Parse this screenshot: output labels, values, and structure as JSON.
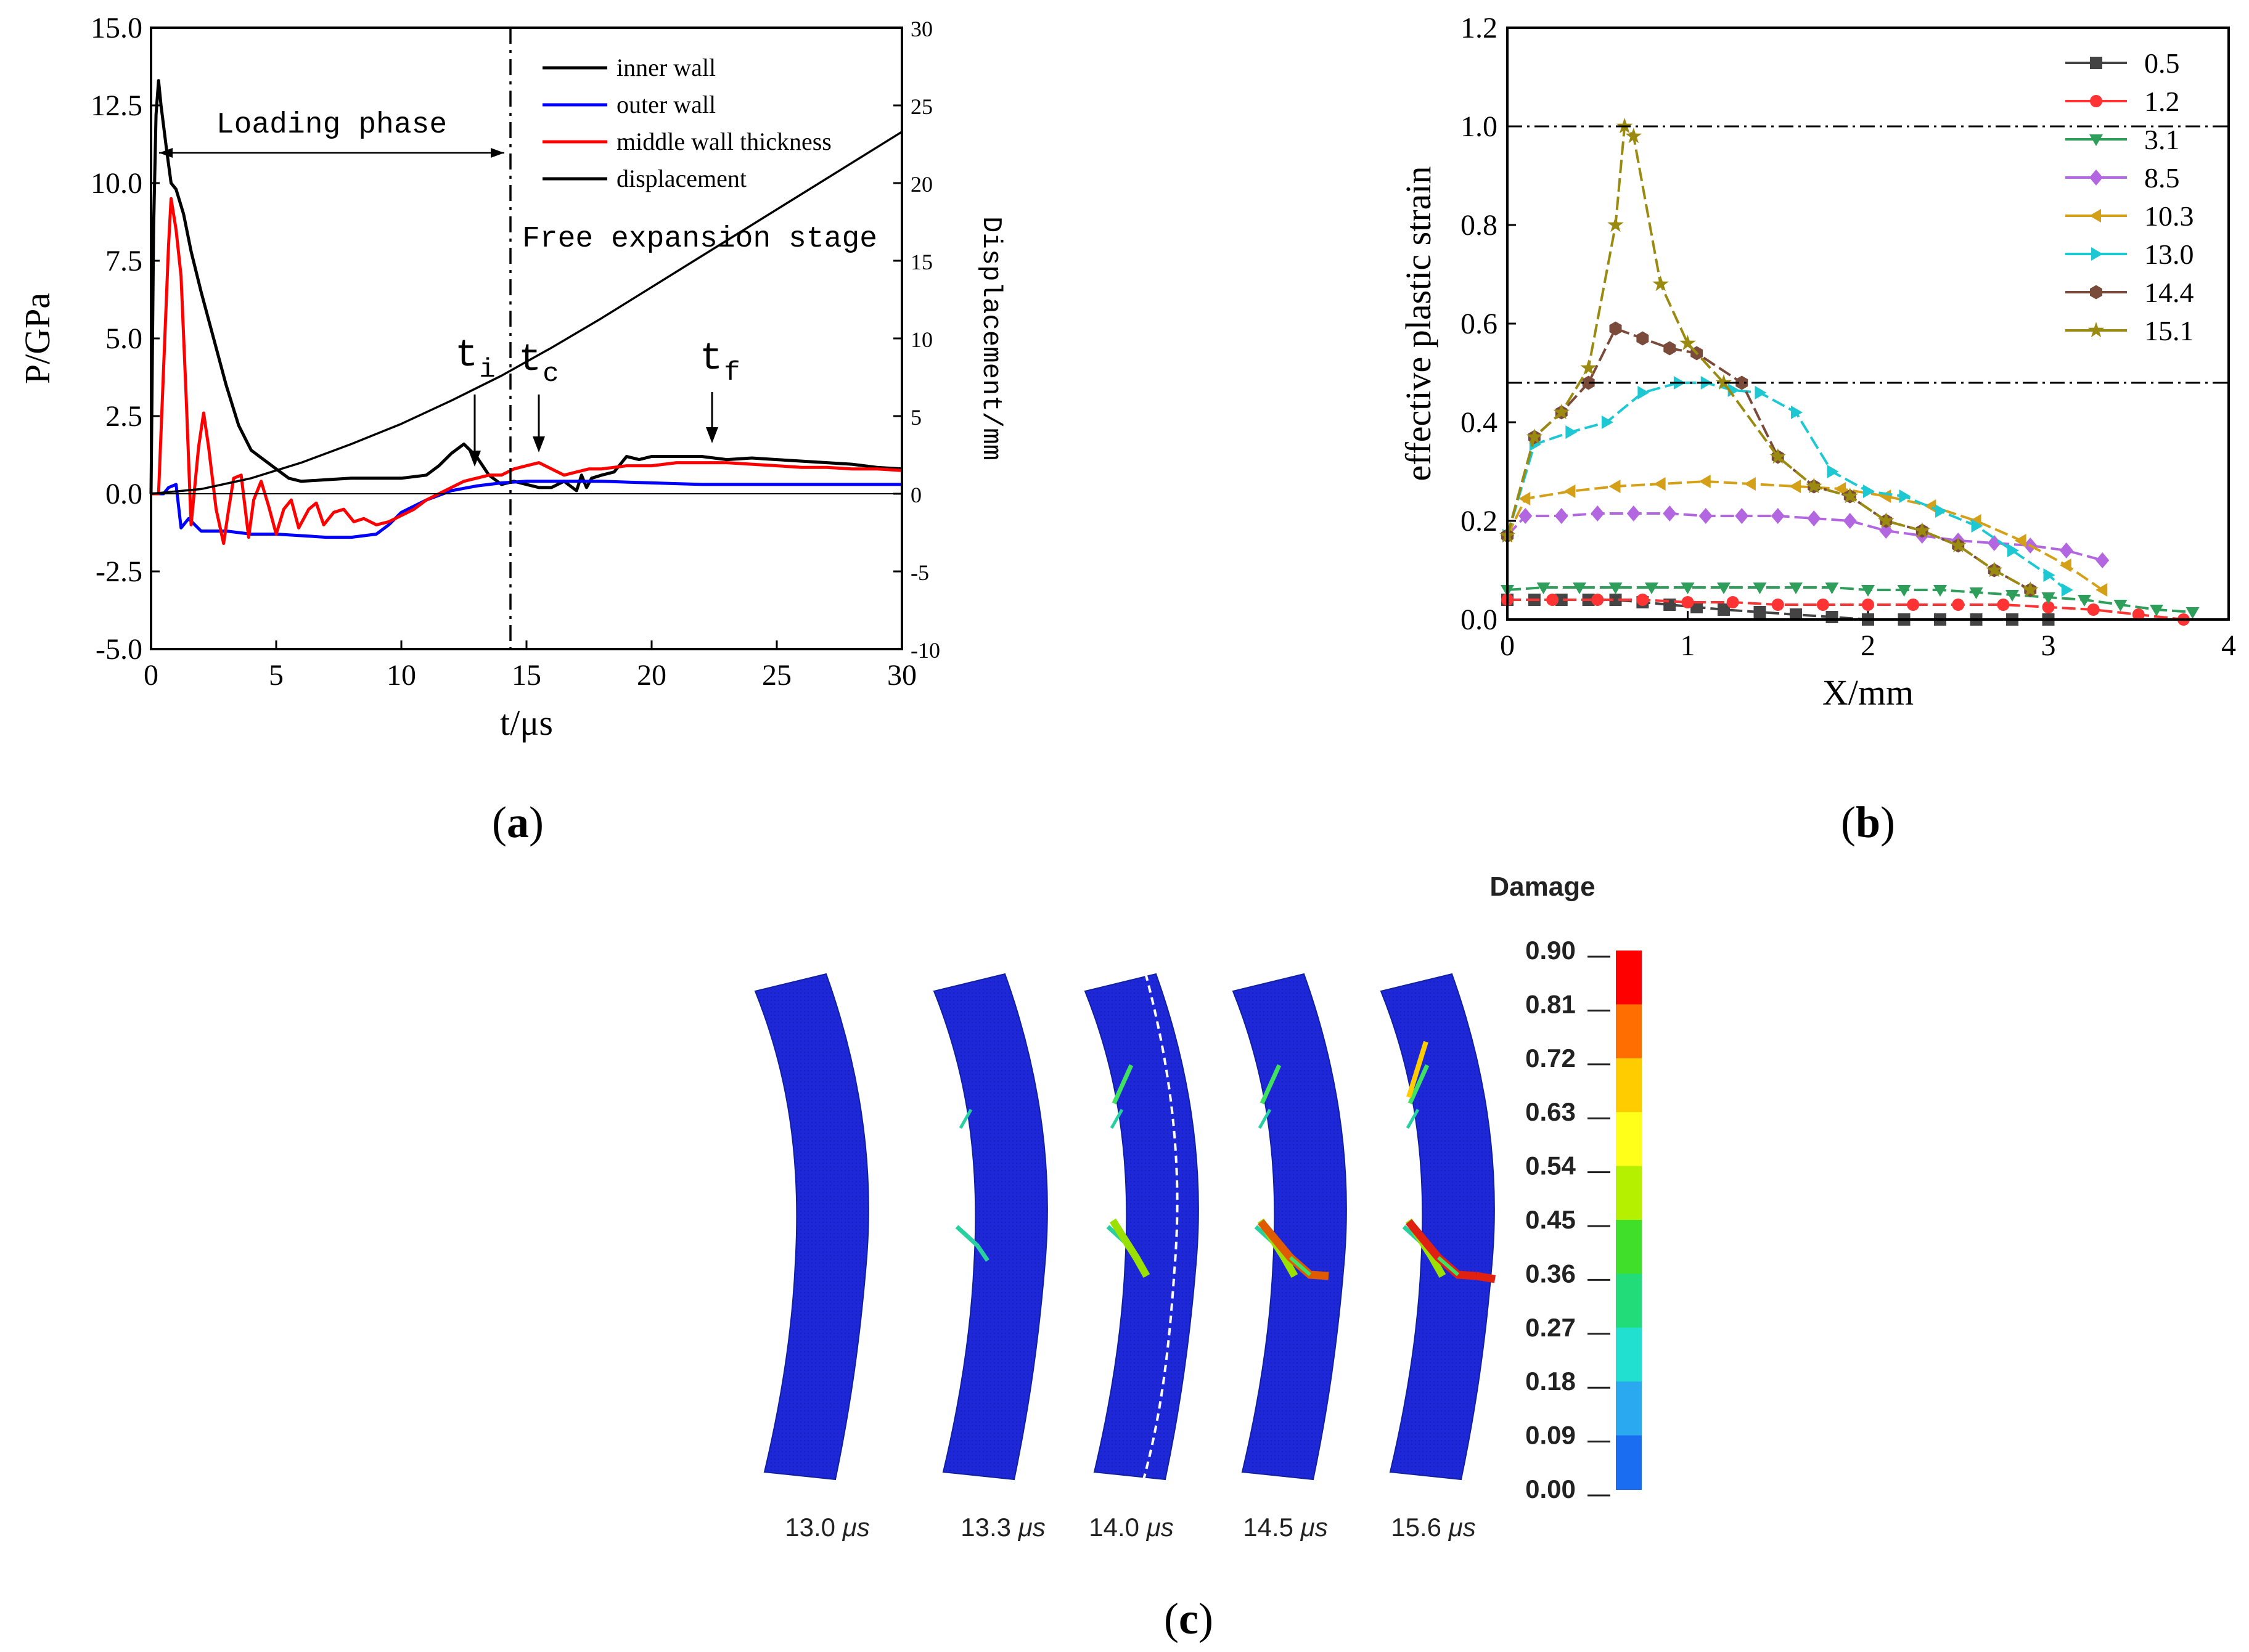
{
  "panel_labels": {
    "a": "a",
    "b": "b",
    "c": "c"
  },
  "chart_data": [
    {
      "id": "a",
      "type": "line",
      "xlabel": "t/μs",
      "ylabel": "P/GPa",
      "y2label": "Displacement/mm",
      "xlim": [
        0,
        30
      ],
      "ylim": [
        -5,
        15
      ],
      "y2lim": [
        -10,
        30
      ],
      "xticks": [
        "0",
        "5",
        "10",
        "15",
        "20",
        "25",
        "30"
      ],
      "yticks": [
        "-5.0",
        "-2.5",
        "0.0",
        "2.5",
        "5.0",
        "7.5",
        "10.0",
        "12.5",
        "15.0"
      ],
      "y2ticks": [
        "-10",
        "-5",
        "0",
        "5",
        "10",
        "15",
        "20",
        "25",
        "30"
      ],
      "legend": {
        "position": "top-right",
        "entries": [
          "inner wall",
          "outer wall",
          "middle wall thickness",
          "displacement"
        ]
      },
      "colors": {
        "inner wall": "#000000",
        "outer wall": "#0000ff",
        "middle wall thickness": "#ff0000",
        "displacement": "#000000"
      },
      "annotations": {
        "loading": "Loading phase",
        "free": "Free expansion stage",
        "ti": "t",
        "ti_sub": "i",
        "tc": "t",
        "tc_sub": "c",
        "tf": "t",
        "tf_sub": "f"
      },
      "phase_boundary_x": 14.4,
      "series": [
        {
          "name": "inner wall",
          "axis": "left",
          "x": [
            0,
            0.1,
            0.2,
            0.3,
            0.4,
            0.6,
            0.8,
            1.0,
            1.3,
            1.6,
            2.0,
            2.5,
            3.0,
            3.5,
            4.0,
            4.5,
            5.0,
            5.5,
            6.0,
            7.0,
            8.0,
            9.0,
            10.0,
            11.0,
            11.5,
            12.0,
            12.5,
            13.0,
            13.5,
            14.0,
            14.5,
            15.0,
            15.5,
            16.0,
            16.5,
            17.0,
            17.2,
            17.4,
            17.6,
            18.0,
            18.5,
            19.0,
            19.5,
            20.0,
            21.0,
            22.0,
            23.0,
            24.0,
            25.0,
            26.0,
            27.0,
            28.0,
            29.0,
            30.0
          ],
          "y": [
            0,
            8.5,
            12.2,
            13.3,
            12.5,
            11.2,
            10.0,
            9.8,
            9.0,
            7.8,
            6.5,
            5.0,
            3.5,
            2.2,
            1.4,
            1.1,
            0.8,
            0.5,
            0.4,
            0.45,
            0.5,
            0.5,
            0.5,
            0.6,
            0.9,
            1.3,
            1.6,
            1.2,
            0.6,
            0.3,
            0.4,
            0.3,
            0.2,
            0.2,
            0.4,
            0.1,
            0.6,
            0.2,
            0.5,
            0.6,
            0.7,
            1.2,
            1.1,
            1.2,
            1.2,
            1.2,
            1.1,
            1.15,
            1.1,
            1.05,
            1.0,
            0.95,
            0.85,
            0.8
          ]
        },
        {
          "name": "outer wall",
          "axis": "left",
          "x": [
            0,
            0.5,
            0.7,
            1.0,
            1.2,
            1.5,
            2.0,
            3.0,
            4.0,
            5.0,
            6.0,
            7.0,
            8.0,
            9.0,
            9.5,
            10.0,
            11.0,
            12.0,
            13.0,
            14.0,
            15.0,
            16.0,
            17.0,
            18.0,
            20.0,
            22.0,
            24.0,
            26.0,
            28.0,
            30.0
          ],
          "y": [
            0,
            0,
            0.2,
            0.3,
            -1.1,
            -0.8,
            -1.2,
            -1.2,
            -1.3,
            -1.3,
            -1.35,
            -1.4,
            -1.4,
            -1.3,
            -1.0,
            -0.6,
            -0.2,
            0.1,
            0.25,
            0.35,
            0.4,
            0.4,
            0.4,
            0.4,
            0.35,
            0.3,
            0.3,
            0.3,
            0.3,
            0.3
          ]
        },
        {
          "name": "middle wall thickness",
          "axis": "left",
          "x": [
            0,
            0.3,
            0.5,
            0.7,
            0.8,
            1.0,
            1.2,
            1.4,
            1.6,
            1.9,
            2.1,
            2.3,
            2.6,
            2.9,
            3.1,
            3.3,
            3.6,
            3.9,
            4.1,
            4.4,
            4.7,
            5.0,
            5.3,
            5.6,
            5.9,
            6.3,
            6.6,
            6.9,
            7.3,
            7.7,
            8.1,
            8.5,
            9.0,
            9.5,
            10.0,
            10.5,
            11.0,
            11.5,
            12.0,
            12.5,
            13.0,
            13.5,
            14.0,
            14.5,
            15.0,
            15.5,
            16.0,
            16.5,
            17.0,
            17.5,
            18.0,
            19.0,
            20.0,
            21.0,
            22.0,
            23.0,
            24.0,
            25.0,
            26.0,
            27.0,
            28.0,
            29.0,
            30.0
          ],
          "y": [
            0,
            0,
            4.0,
            8.0,
            9.5,
            8.5,
            7.0,
            3.2,
            -1.0,
            1.5,
            2.6,
            1.5,
            -0.5,
            -1.6,
            -0.5,
            0.5,
            0.6,
            -1.4,
            -0.2,
            0.4,
            -0.4,
            -1.3,
            -0.5,
            -0.2,
            -1.1,
            -0.5,
            -0.3,
            -1.0,
            -0.6,
            -0.5,
            -0.9,
            -0.8,
            -1.0,
            -0.9,
            -0.7,
            -0.5,
            -0.2,
            0.0,
            0.2,
            0.4,
            0.5,
            0.6,
            0.6,
            0.8,
            0.9,
            1.0,
            0.8,
            0.6,
            0.7,
            0.8,
            0.8,
            0.9,
            0.9,
            1.0,
            1.0,
            1.0,
            0.95,
            0.9,
            0.85,
            0.85,
            0.8,
            0.8,
            0.75
          ]
        },
        {
          "name": "displacement",
          "axis": "right",
          "x": [
            0,
            2,
            4,
            6,
            8,
            10,
            12,
            14,
            16,
            18,
            20,
            22,
            24,
            26,
            28,
            30
          ],
          "y": [
            0,
            0.3,
            1.0,
            2.0,
            3.2,
            4.5,
            6.0,
            7.6,
            9.4,
            11.3,
            13.3,
            15.3,
            17.3,
            19.3,
            21.3,
            23.3
          ]
        }
      ]
    },
    {
      "id": "b",
      "type": "line",
      "xlabel": "X/mm",
      "ylabel": "effective plastic strain",
      "xlim": [
        0,
        4
      ],
      "ylim": [
        0,
        1.2
      ],
      "xticks": [
        "0",
        "1",
        "2",
        "3",
        "4"
      ],
      "yticks": [
        "0.0",
        "0.2",
        "0.4",
        "0.6",
        "0.8",
        "1.0",
        "1.2"
      ],
      "ref_lines": [
        1.0,
        0.48
      ],
      "legend": {
        "position": "top-right"
      },
      "series": [
        {
          "name": "0.5",
          "color": "#444444",
          "marker": "square",
          "x": [
            0,
            0.15,
            0.3,
            0.45,
            0.6,
            0.75,
            0.9,
            1.05,
            1.2,
            1.4,
            1.6,
            1.8,
            2.0,
            2.2,
            2.4,
            2.6,
            2.8,
            3.0
          ],
          "y": [
            0.04,
            0.04,
            0.04,
            0.04,
            0.04,
            0.035,
            0.03,
            0.025,
            0.02,
            0.015,
            0.01,
            0.005,
            0.0,
            0.0,
            0.0,
            0.0,
            0.0,
            0.0
          ]
        },
        {
          "name": "1.2",
          "color": "#ff3333",
          "marker": "circle",
          "x": [
            0,
            0.25,
            0.5,
            0.75,
            1.0,
            1.25,
            1.5,
            1.75,
            2.0,
            2.25,
            2.5,
            2.75,
            3.0,
            3.25,
            3.5,
            3.75
          ],
          "y": [
            0.04,
            0.04,
            0.04,
            0.04,
            0.035,
            0.035,
            0.03,
            0.03,
            0.03,
            0.03,
            0.03,
            0.03,
            0.025,
            0.02,
            0.01,
            0.0
          ]
        },
        {
          "name": "3.1",
          "color": "#2e9e5b",
          "marker": "triangle-down",
          "x": [
            0,
            0.2,
            0.4,
            0.6,
            0.8,
            1.0,
            1.2,
            1.4,
            1.6,
            1.8,
            2.0,
            2.2,
            2.4,
            2.6,
            2.8,
            3.0,
            3.2,
            3.4,
            3.6,
            3.8
          ],
          "y": [
            0.06,
            0.065,
            0.065,
            0.065,
            0.065,
            0.065,
            0.065,
            0.065,
            0.065,
            0.065,
            0.06,
            0.06,
            0.06,
            0.055,
            0.05,
            0.045,
            0.04,
            0.03,
            0.02,
            0.015
          ]
        },
        {
          "name": "8.5",
          "color": "#b266e0",
          "marker": "diamond",
          "x": [
            0,
            0.1,
            0.3,
            0.5,
            0.7,
            0.9,
            1.1,
            1.3,
            1.5,
            1.7,
            1.9,
            2.1,
            2.3,
            2.5,
            2.7,
            2.9,
            3.1,
            3.3
          ],
          "y": [
            0.17,
            0.21,
            0.21,
            0.215,
            0.215,
            0.215,
            0.21,
            0.21,
            0.21,
            0.205,
            0.2,
            0.18,
            0.17,
            0.16,
            0.155,
            0.15,
            0.14,
            0.12
          ]
        },
        {
          "name": "10.3",
          "color": "#d4a017",
          "marker": "triangle-left",
          "x": [
            0,
            0.1,
            0.35,
            0.6,
            0.85,
            1.1,
            1.35,
            1.6,
            1.85,
            2.1,
            2.35,
            2.6,
            2.85,
            3.1,
            3.3
          ],
          "y": [
            0.17,
            0.245,
            0.26,
            0.27,
            0.275,
            0.28,
            0.275,
            0.27,
            0.265,
            0.25,
            0.23,
            0.2,
            0.16,
            0.11,
            0.06
          ]
        },
        {
          "name": "13.0",
          "color": "#1ec8d2",
          "marker": "triangle-right",
          "x": [
            0,
            0.15,
            0.35,
            0.55,
            0.75,
            0.95,
            1.1,
            1.25,
            1.4,
            1.6,
            1.8,
            2.0,
            2.2,
            2.4,
            2.6,
            2.8,
            3.0,
            3.1
          ],
          "y": [
            0.17,
            0.355,
            0.38,
            0.4,
            0.46,
            0.48,
            0.48,
            0.465,
            0.46,
            0.42,
            0.3,
            0.26,
            0.25,
            0.22,
            0.19,
            0.14,
            0.09,
            0.06
          ]
        },
        {
          "name": "14.4",
          "color": "#7a4a3a",
          "marker": "hexagon",
          "x": [
            0,
            0.15,
            0.3,
            0.45,
            0.6,
            0.75,
            0.9,
            1.05,
            1.3,
            1.5,
            1.7,
            1.9,
            2.1,
            2.3,
            2.5,
            2.7,
            2.9
          ],
          "y": [
            0.17,
            0.37,
            0.42,
            0.48,
            0.59,
            0.57,
            0.55,
            0.54,
            0.48,
            0.33,
            0.27,
            0.25,
            0.2,
            0.18,
            0.15,
            0.1,
            0.06
          ]
        },
        {
          "name": "15.1",
          "color": "#9a8a10",
          "marker": "star",
          "x": [
            0,
            0.15,
            0.3,
            0.45,
            0.6,
            0.65,
            0.7,
            0.85,
            1.0,
            1.2,
            1.5,
            1.7,
            1.9,
            2.1,
            2.3,
            2.5,
            2.7,
            2.9
          ],
          "y": [
            0.17,
            0.37,
            0.42,
            0.51,
            0.8,
            1.0,
            0.98,
            0.68,
            0.56,
            0.48,
            0.33,
            0.27,
            0.25,
            0.2,
            0.18,
            0.15,
            0.1,
            0.06
          ]
        }
      ]
    },
    {
      "id": "c",
      "type": "heatmap",
      "title": "Damage",
      "colorbar_ticks": [
        "0.90",
        "0.81",
        "0.72",
        "0.63",
        "0.54",
        "0.45",
        "0.36",
        "0.27",
        "0.18",
        "0.09",
        "0.00"
      ],
      "colorbar_colors": [
        "#ff0000",
        "#ff6e00",
        "#ffcc00",
        "#ffff1a",
        "#b4f000",
        "#40e02a",
        "#22dc7a",
        "#22e0d0",
        "#2aa8f0",
        "#1a6cf0",
        "#0a28e0"
      ],
      "frames": [
        "13.0 μs",
        "13.3 μs",
        "14.0 μs",
        "14.5 μs",
        "15.6 μs"
      ]
    }
  ]
}
